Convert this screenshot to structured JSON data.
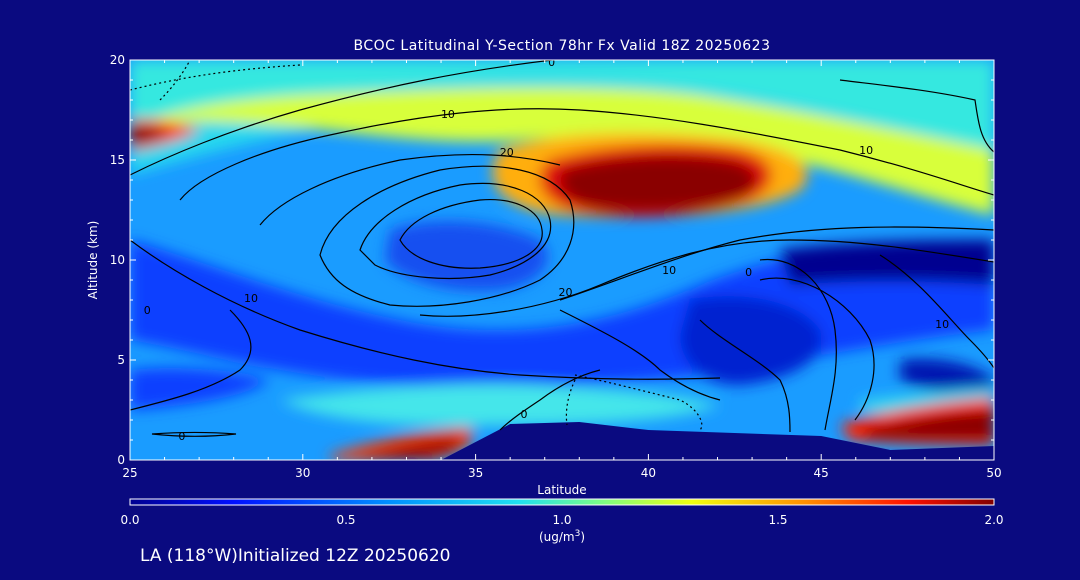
{
  "chart_data": {
    "type": "heatmap",
    "title": "BCOC Latitudinal Y-Section 78hr  Fx Valid 18Z 20250623",
    "xlabel": "Latitude",
    "ylabel": "Altitude (km)",
    "xlim": [
      25,
      50
    ],
    "ylim": [
      0,
      20
    ],
    "x_ticks": [
      "25",
      "30",
      "35",
      "40",
      "45",
      "50"
    ],
    "y_ticks": [
      "0",
      "5",
      "10",
      "15",
      "20"
    ],
    "colorbar": {
      "min": 0.0,
      "max": 2.0,
      "ticks": [
        "0.0",
        "0.5",
        "1.0",
        "1.5",
        "2.0"
      ],
      "unit_label": "(ug/m",
      "unit_sup": "3",
      "unit_close": ")"
    },
    "contour_levels": [
      0,
      10,
      20
    ],
    "contour_labels": [
      {
        "text": "0",
        "x": 37.2,
        "y": 19.9
      },
      {
        "text": "10",
        "x": 34.2,
        "y": 17.3
      },
      {
        "text": "20",
        "x": 35.9,
        "y": 15.4
      },
      {
        "text": "10",
        "x": 28.5,
        "y": 8.1
      },
      {
        "text": "0",
        "x": 25.5,
        "y": 7.5
      },
      {
        "text": "20",
        "x": 37.6,
        "y": 8.4
      },
      {
        "text": "10",
        "x": 40.6,
        "y": 9.5
      },
      {
        "text": "0",
        "x": 42.9,
        "y": 9.4
      },
      {
        "text": "10",
        "x": 48.5,
        "y": 6.8
      },
      {
        "text": "10",
        "x": 46.3,
        "y": 15.5
      },
      {
        "text": "0",
        "x": 36.4,
        "y": 2.3
      },
      {
        "text": "0",
        "x": 26.5,
        "y": 1.2
      }
    ],
    "field_features": [
      {
        "lat": 41.0,
        "alt": 13.8,
        "value": 2.0,
        "desc": "upper-level maximum"
      },
      {
        "lat": 25.5,
        "alt": 16.2,
        "value": 2.0,
        "desc": "upper-level maximum"
      },
      {
        "lat": 48.5,
        "alt": 1.6,
        "value": 2.0,
        "desc": "surface maximum"
      },
      {
        "lat": 34.0,
        "alt": 0.7,
        "value": 1.9,
        "desc": "surface maximum"
      },
      {
        "lat": 35.5,
        "alt": 10.5,
        "value": 0.3,
        "desc": "minimum"
      },
      {
        "lat": 44.0,
        "alt": 7.0,
        "value": 0.3,
        "desc": "minimum"
      }
    ],
    "terrain_profile": [
      {
        "lat": 34.0,
        "alt": 0.0
      },
      {
        "lat": 36.0,
        "alt": 1.8
      },
      {
        "lat": 38.0,
        "alt": 1.9
      },
      {
        "lat": 40.0,
        "alt": 1.5
      },
      {
        "lat": 45.0,
        "alt": 1.2
      },
      {
        "lat": 47.0,
        "alt": 0.5
      },
      {
        "lat": 50.0,
        "alt": 0.7
      }
    ],
    "legend": "colorbar bottom"
  },
  "footer": {
    "location_text": "LA (118°W)Initialized 12Z 20250620"
  }
}
